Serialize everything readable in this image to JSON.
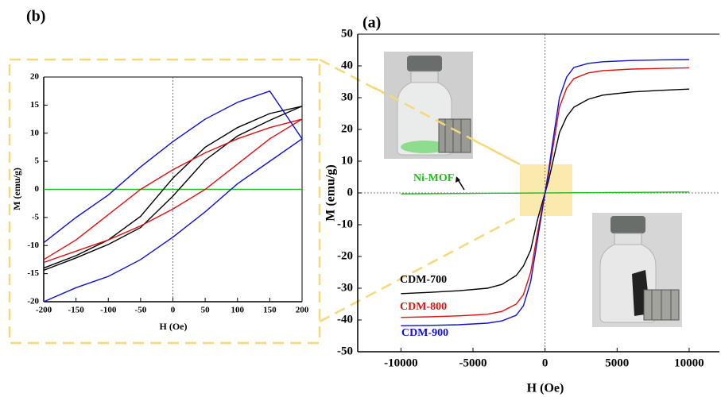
{
  "chart_data": [
    {
      "type": "line",
      "title": "(a)",
      "x_label": "H (Oe)",
      "y_label": "M (emu/g)",
      "x": [
        -10000,
        -8000,
        -6000,
        -4000,
        -3000,
        -2000,
        -1500,
        -1000,
        -500,
        -250,
        0,
        250,
        500,
        1000,
        1500,
        2000,
        3000,
        4000,
        6000,
        8000,
        10000
      ],
      "series": [
        {
          "name": "Ni-MOF",
          "color": "#1fbf1f",
          "values": [
            -0.3,
            -0.24,
            -0.18,
            -0.12,
            -0.09,
            -0.06,
            -0.045,
            -0.03,
            -0.015,
            -0.008,
            0,
            0.008,
            0.015,
            0.03,
            0.045,
            0.06,
            0.09,
            0.12,
            0.18,
            0.24,
            0.3
          ]
        },
        {
          "name": "CDM-700",
          "color": "#000000",
          "values": [
            -31.7,
            -31.3,
            -30.8,
            -30,
            -28.8,
            -26,
            -23,
            -18,
            -8,
            -4,
            0,
            4,
            9,
            19,
            24,
            27,
            29.5,
            30.8,
            31.8,
            32.3,
            32.7
          ]
        },
        {
          "name": "CDM-800",
          "color": "#e01010",
          "values": [
            -39.2,
            -39,
            -38.7,
            -38.2,
            -37.3,
            -35,
            -32,
            -25,
            -12,
            -6,
            0,
            6,
            13,
            27,
            33,
            36,
            37.8,
            38.5,
            39,
            39.2,
            39.4
          ]
        },
        {
          "name": "CDM-900",
          "color": "#1010d0",
          "values": [
            -41.8,
            -41.7,
            -41.5,
            -41,
            -40.3,
            -38.5,
            -35.5,
            -28,
            -14,
            -7,
            0,
            7,
            15,
            30,
            36.5,
            39.5,
            40.8,
            41.3,
            41.7,
            41.9,
            42
          ]
        }
      ],
      "xlim": [
        -13000,
        12100
      ],
      "xticks": [
        -10000,
        -5000,
        0,
        5000,
        10000
      ],
      "ylim": [
        -50,
        50
      ],
      "yticks": [
        -50,
        -40,
        -30,
        -20,
        -10,
        0,
        10,
        20,
        30,
        40,
        50
      ],
      "zero_lines": true
    },
    {
      "type": "line",
      "title": "(b)",
      "x_label": "H (Oe)",
      "y_label": "M (emu/g)",
      "x": [
        -200,
        -150,
        -100,
        -50,
        0,
        50,
        100,
        150,
        200,
        150,
        100,
        50,
        0,
        -50,
        -100,
        -150,
        -200
      ],
      "series": [
        {
          "color": "#1fbf1f",
          "values": [
            0,
            0,
            0,
            0,
            0,
            0,
            0,
            0,
            0,
            0,
            0,
            0,
            0,
            0,
            0,
            0,
            0
          ]
        },
        {
          "color": "#000000",
          "values": [
            -14.4,
            -12.2,
            -9.8,
            -6.8,
            -1.2,
            5.2,
            9.5,
            12.3,
            14.8,
            13.5,
            11,
            7.5,
            2,
            -4.8,
            -9,
            -11.8,
            -14
          ]
        },
        {
          "color": "#e01010",
          "values": [
            -13,
            -11,
            -9,
            -6.5,
            -3.5,
            0,
            4.5,
            9,
            12.5,
            11,
            9,
            6.5,
            3.5,
            0,
            -4.5,
            -9,
            -12.5
          ]
        },
        {
          "color": "#1010d0",
          "values": [
            -20,
            -17.5,
            -15.5,
            -12.5,
            -8.5,
            -4,
            1,
            5,
            9,
            17.5,
            15.5,
            12.5,
            8.5,
            4,
            -1,
            -5,
            -9.5
          ]
        }
      ],
      "xlim": [
        -200,
        200
      ],
      "xticks": [
        -200,
        -150,
        -100,
        -50,
        0,
        50,
        100,
        150,
        200
      ],
      "ylim": [
        -20,
        20
      ],
      "yticks": [
        -20,
        -15,
        -10,
        -5,
        0,
        5,
        10,
        15,
        20
      ],
      "zero_lines": true
    }
  ]
}
